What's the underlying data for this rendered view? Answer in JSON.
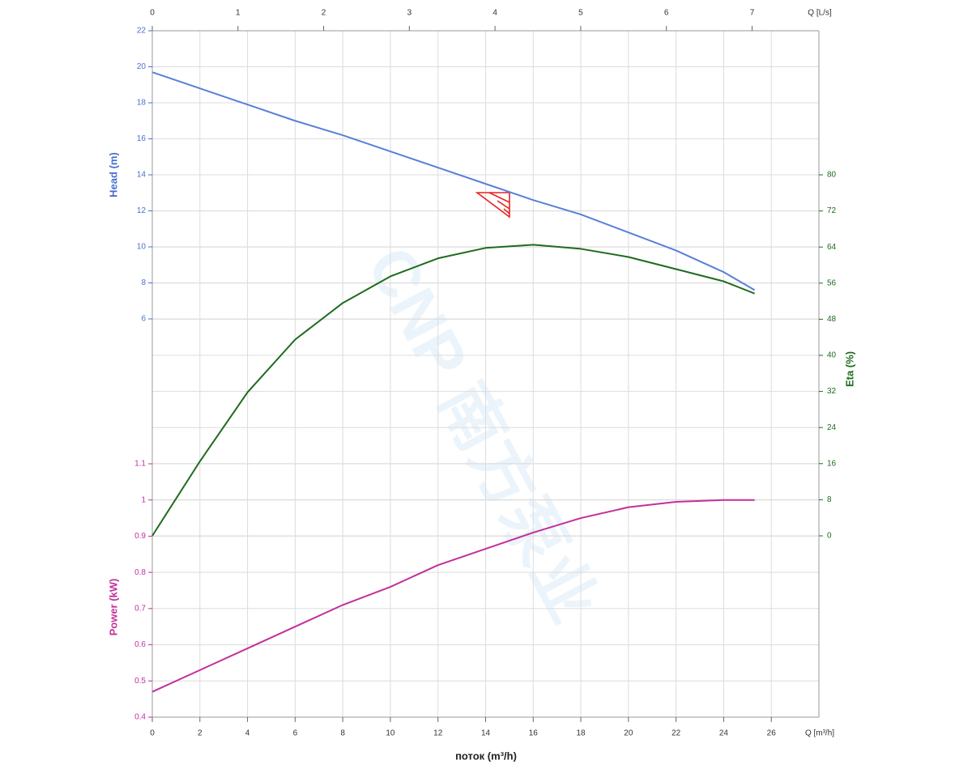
{
  "chart_data": {
    "type": "line",
    "x_label": "поток (m³/h)",
    "x_unit": "Q [m³/h]",
    "x2_unit": "Q [L/s]",
    "watermark": "CNP 南方泵业",
    "x": [
      0,
      2,
      4,
      6,
      8,
      10,
      12,
      14,
      16,
      18,
      20,
      22,
      24,
      25.3
    ],
    "xlim": [
      0,
      28
    ],
    "xticks": [
      0,
      2,
      4,
      6,
      8,
      10,
      12,
      14,
      16,
      18,
      20,
      22,
      24,
      26
    ],
    "x2lim": [
      0,
      7.78
    ],
    "x2ticks": [
      0,
      1,
      2,
      3,
      4,
      5,
      6,
      7
    ],
    "y_label": "Head (m)",
    "ylim": [
      6,
      22
    ],
    "yticks": [
      6,
      8,
      10,
      12,
      14,
      16,
      18,
      20,
      22
    ],
    "y2_label": "Eta (%)",
    "y2lim": [
      0,
      80
    ],
    "y2ticks": [
      0,
      8,
      16,
      24,
      32,
      40,
      48,
      56,
      64,
      72,
      80
    ],
    "y3_label": "Power (kW)",
    "y3lim": [
      0.4,
      1.1
    ],
    "y3ticks": [
      0.4,
      0.5,
      0.6,
      0.7,
      0.8,
      0.9,
      1,
      1.1
    ],
    "grid": true,
    "series": [
      {
        "name": "Head (m)",
        "axis": "y",
        "color": "#5a7fd8",
        "values": [
          19.7,
          18.8,
          17.9,
          17.0,
          16.2,
          15.3,
          14.4,
          13.5,
          12.6,
          11.8,
          10.8,
          9.8,
          8.6,
          7.6
        ]
      },
      {
        "name": "Eta (%)",
        "axis": "y2",
        "color": "#1d6b1d",
        "values": [
          0,
          16.5,
          31.8,
          43.5,
          51.6,
          57.5,
          61.5,
          63.8,
          64.5,
          63.6,
          61.8,
          59.1,
          56.4,
          53.7
        ]
      },
      {
        "name": "Power (kW)",
        "axis": "y3",
        "color": "#c2309c",
        "values": [
          0.47,
          0.53,
          0.59,
          0.65,
          0.71,
          0.76,
          0.82,
          0.865,
          0.91,
          0.95,
          0.98,
          0.995,
          1.0,
          1.0
        ]
      }
    ]
  }
}
